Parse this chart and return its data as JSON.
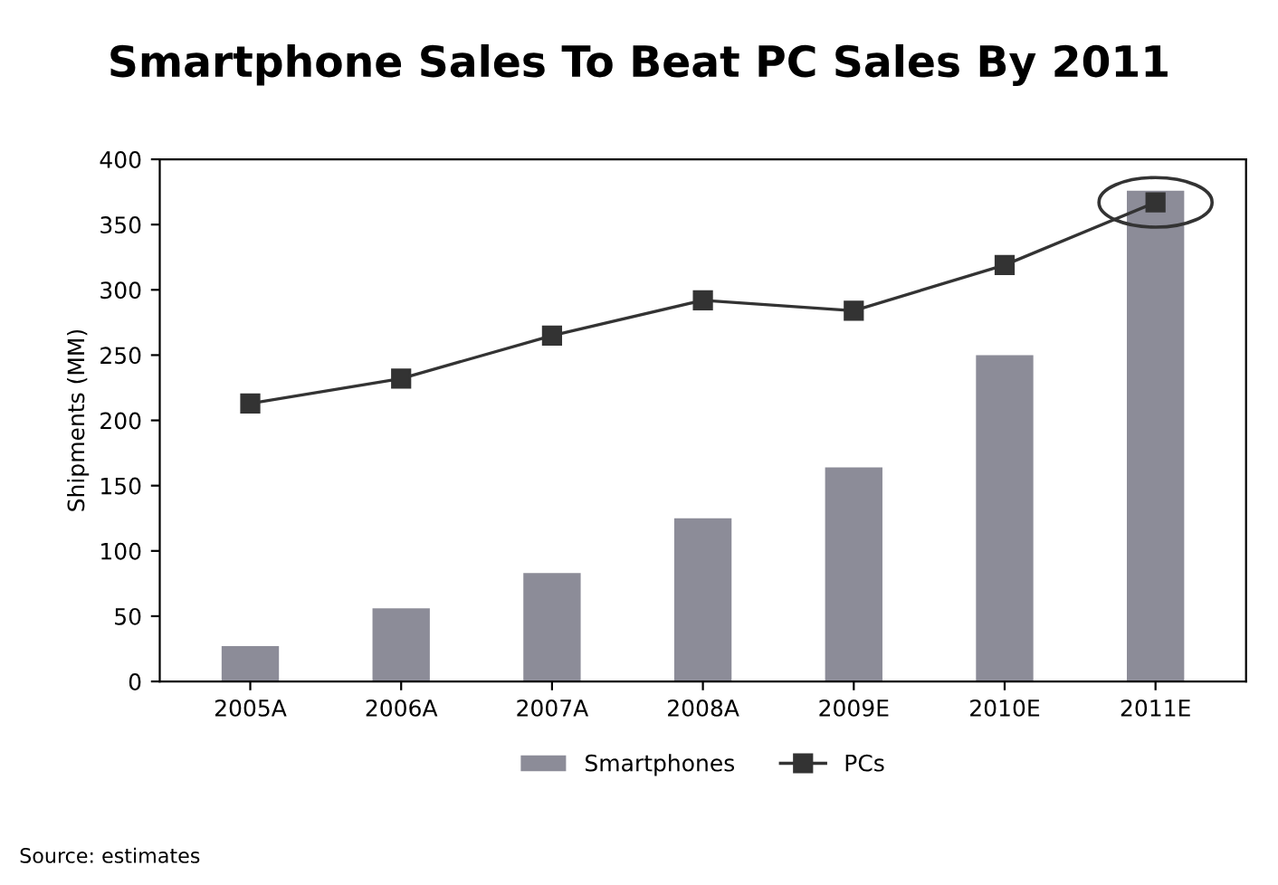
{
  "chart_data": {
    "type": "bar",
    "title": "Smartphone Sales To Beat PC Sales By 2011",
    "ylabel": "Shipments (MM)",
    "categories": [
      "2005A",
      "2006A",
      "2007A",
      "2008A",
      "2009E",
      "2010E",
      "2011E"
    ],
    "series": [
      {
        "name": "Smartphones",
        "color": "#8c8c98",
        "values": [
          27,
          56,
          83,
          125,
          164,
          250,
          376
        ]
      },
      {
        "name": "PCs",
        "type": "line",
        "color": "#333333",
        "marker": "square",
        "values": [
          213,
          232,
          265,
          292,
          284,
          319,
          367
        ]
      }
    ],
    "ylim": [
      0,
      400
    ],
    "yticks": [
      0,
      50,
      100,
      150,
      200,
      250,
      300,
      350,
      400
    ],
    "grid": false,
    "legend": "bottom",
    "annotations": [
      "Source: estimates"
    ]
  }
}
